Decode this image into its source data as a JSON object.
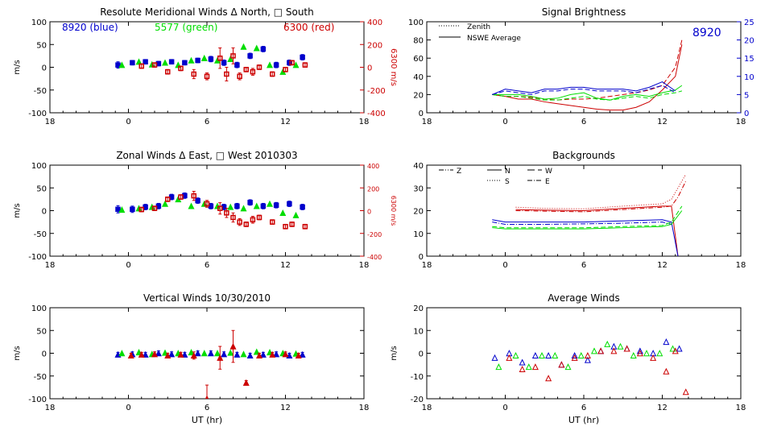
{
  "colors": {
    "blue": "#0000cc",
    "green": "#00dd00",
    "red": "#cc0000",
    "axis": "#000000"
  },
  "x_axis": {
    "ticks": [
      "18",
      "0",
      "6",
      "12",
      "18"
    ],
    "xlabel": "UT (hr)"
  },
  "chart_data": [
    {
      "id": "meridional",
      "type": "scatter",
      "title": "Resolute Meridional Winds Δ North, □ South",
      "ylabel": "m/s",
      "y2label": "6300 m/s",
      "ylim": [
        -100,
        100
      ],
      "yticks": [
        "100",
        "50",
        "0",
        "-50",
        "-100"
      ],
      "y2lim": [
        -400,
        400
      ],
      "y2ticks": [
        "400",
        "200",
        "0",
        "-200",
        "-400"
      ],
      "annotations": [
        {
          "text": "8920 (blue)",
          "color": "blue"
        },
        {
          "text": "5577 (green)",
          "color": "green"
        },
        {
          "text": "6300 (red)",
          "color": "red"
        }
      ],
      "series": [
        {
          "color": "blue",
          "marker": "square",
          "errorbars": true,
          "x": [
            -0.8,
            0.3,
            1.3,
            2.3,
            3.3,
            4.3,
            5.3,
            6.3,
            7.3,
            8.3,
            9.3,
            10.3,
            11.3,
            12.3,
            13.3
          ],
          "y": [
            5,
            10,
            12,
            8,
            12,
            10,
            15,
            18,
            10,
            5,
            25,
            40,
            5,
            10,
            22
          ],
          "err": [
            7,
            5,
            5,
            5,
            5,
            5,
            5,
            6,
            6,
            6,
            6,
            6,
            6,
            6,
            6
          ]
        },
        {
          "color": "green",
          "marker": "triangle",
          "errorbars": false,
          "x": [
            -0.5,
            0.8,
            1.8,
            2.8,
            3.8,
            4.8,
            5.8,
            6.8,
            7.8,
            8.8,
            9.8,
            10.8,
            11.8,
            12.8
          ],
          "y": [
            5,
            12,
            6,
            10,
            5,
            15,
            20,
            15,
            18,
            45,
            42,
            5,
            -10,
            5
          ],
          "err": []
        },
        {
          "color": "red",
          "marker": "square",
          "errorbars": true,
          "axis": "y2",
          "x": [
            1.0,
            2.0,
            3.0,
            4.0,
            5.0,
            6.0,
            7.0,
            7.5,
            8.0,
            8.5,
            9.0,
            9.5,
            10.0,
            11.0,
            12.0,
            12.5,
            13.5
          ],
          "y": [
            10,
            20,
            -40,
            -10,
            -60,
            -80,
            80,
            -60,
            100,
            -80,
            -20,
            -40,
            0,
            -60,
            -20,
            40,
            20
          ],
          "err": [
            20,
            20,
            20,
            20,
            40,
            30,
            90,
            60,
            70,
            30,
            20,
            30,
            20,
            20,
            20,
            20,
            20
          ]
        }
      ]
    },
    {
      "id": "brightness",
      "type": "line",
      "title": "Signal Brightness",
      "ylim": [
        0,
        100
      ],
      "yticks": [
        "100",
        "80",
        "60",
        "40",
        "20",
        "0"
      ],
      "y2lim": [
        0,
        25
      ],
      "y2ticks": [
        "25",
        "20",
        "15",
        "10",
        "5",
        "0"
      ],
      "annotation": "8920",
      "legend": [
        {
          "label": "Zenith",
          "style": "dotted"
        },
        {
          "label": "NSWE Average",
          "style": "solid"
        }
      ],
      "series": [
        {
          "color": "red",
          "style": "solid",
          "x": [
            -1,
            0,
            1,
            2,
            3,
            4,
            5,
            6,
            7,
            8,
            9,
            10,
            11,
            12,
            13,
            13.5
          ],
          "y": [
            20,
            18,
            15,
            15,
            12,
            10,
            8,
            6,
            4,
            3,
            3,
            6,
            12,
            25,
            40,
            75
          ]
        },
        {
          "color": "red",
          "style": "dashed",
          "x": [
            -1,
            0,
            1,
            2,
            3,
            4,
            5,
            6,
            7,
            8,
            9,
            10,
            11,
            12,
            13,
            13.5
          ],
          "y": [
            20,
            18,
            18,
            17,
            15,
            14,
            15,
            15,
            16,
            18,
            20,
            22,
            25,
            30,
            50,
            80
          ]
        },
        {
          "color": "green",
          "style": "solid",
          "x": [
            -1,
            0,
            1,
            2,
            3,
            4,
            5,
            6,
            7,
            8,
            9,
            10,
            11,
            12,
            13,
            13.5
          ],
          "y": [
            20,
            20,
            20,
            18,
            15,
            16,
            20,
            22,
            16,
            14,
            18,
            20,
            18,
            22,
            25,
            30
          ]
        },
        {
          "color": "green",
          "style": "dashed",
          "x": [
            -1,
            0,
            1,
            2,
            3,
            4,
            5,
            6,
            7,
            8,
            9,
            10,
            11,
            12,
            13,
            13.5
          ],
          "y": [
            20,
            18,
            18,
            16,
            14,
            14,
            16,
            18,
            15,
            14,
            16,
            18,
            16,
            20,
            22,
            24
          ]
        },
        {
          "color": "blue",
          "style": "solid",
          "axis": "y2",
          "x": [
            -1,
            0,
            1,
            2,
            3,
            4,
            5,
            6,
            7,
            8,
            9,
            10,
            11,
            12,
            13
          ],
          "y": [
            5,
            6.5,
            6,
            5.5,
            6.5,
            6.5,
            7,
            7,
            6.5,
            6.5,
            6.5,
            6,
            7,
            8.5,
            6
          ]
        },
        {
          "color": "blue",
          "style": "dashed",
          "axis": "y2",
          "x": [
            -1,
            0,
            1,
            2,
            3,
            4,
            5,
            6,
            7,
            8,
            9,
            10,
            11,
            12,
            13
          ],
          "y": [
            5,
            6,
            5.5,
            5,
            6,
            6,
            6.5,
            6.5,
            6,
            6,
            6,
            5.5,
            6.5,
            7.5,
            5.5
          ]
        }
      ]
    },
    {
      "id": "zonal",
      "type": "scatter",
      "title": "Zonal Winds Δ East, □ West 2010303",
      "ylabel": "m/s",
      "y2label": "6300 m/s",
      "ylim": [
        -100,
        100
      ],
      "yticks": [
        "100",
        "50",
        "0",
        "-50",
        "-100"
      ],
      "y2lim": [
        -400,
        400
      ],
      "y2ticks": [
        "400",
        "200",
        "0",
        "-200",
        "-400"
      ],
      "series": [
        {
          "color": "blue",
          "marker": "square",
          "errorbars": true,
          "x": [
            -0.8,
            0.3,
            1.3,
            2.3,
            3.3,
            4.3,
            5.3,
            6.3,
            7.3,
            8.3,
            9.3,
            10.3,
            11.3,
            12.3,
            13.3
          ],
          "y": [
            3,
            3,
            8,
            10,
            30,
            33,
            22,
            10,
            8,
            10,
            18,
            10,
            12,
            15,
            8
          ],
          "err": [
            8,
            7,
            6,
            6,
            6,
            6,
            6,
            6,
            6,
            6,
            6,
            6,
            6,
            6,
            6
          ]
        },
        {
          "color": "green",
          "marker": "triangle",
          "errorbars": false,
          "x": [
            -0.5,
            0.8,
            1.8,
            2.8,
            3.8,
            4.8,
            5.8,
            6.8,
            7.8,
            8.8,
            9.8,
            10.8,
            11.8,
            12.8
          ],
          "y": [
            2,
            5,
            8,
            15,
            25,
            10,
            15,
            10,
            8,
            5,
            10,
            15,
            -5,
            -10
          ],
          "err": []
        },
        {
          "color": "red",
          "marker": "square",
          "errorbars": true,
          "axis": "y2",
          "x": [
            1.0,
            2.0,
            3.0,
            4.0,
            5.0,
            6.0,
            7.0,
            7.5,
            8.0,
            8.5,
            9.0,
            9.5,
            10.0,
            11.0,
            12.0,
            12.5,
            13.5
          ],
          "y": [
            10,
            20,
            100,
            120,
            130,
            60,
            20,
            -20,
            -60,
            -100,
            -120,
            -80,
            -60,
            -100,
            -140,
            -120,
            -140
          ],
          "err": [
            20,
            20,
            20,
            20,
            40,
            30,
            50,
            40,
            40,
            30,
            20,
            30,
            20,
            20,
            20,
            20,
            20
          ]
        }
      ]
    },
    {
      "id": "backgrounds",
      "type": "line",
      "title": "Backgrounds",
      "ylim": [
        0,
        40
      ],
      "yticks": [
        "40",
        "30",
        "20",
        "10",
        "0"
      ],
      "legend": [
        {
          "label": "Z",
          "style": "dashdotdot"
        },
        {
          "label": "N",
          "style": "solid"
        },
        {
          "label": "W",
          "style": "longdash"
        },
        {
          "label": "S",
          "style": "dotted"
        },
        {
          "label": "E",
          "style": "dashdot"
        }
      ],
      "series": [
        {
          "color": "red",
          "style": "solid",
          "x": [
            0.8,
            3,
            6,
            9,
            12,
            12.7,
            13.2
          ],
          "y": [
            20.5,
            20.2,
            20,
            21,
            22,
            22,
            0
          ]
        },
        {
          "color": "red",
          "style": "dotted",
          "x": [
            0.8,
            3,
            6,
            9,
            12,
            12.7,
            13.2,
            13.8
          ],
          "y": [
            21.5,
            21,
            20.8,
            22,
            23,
            25,
            30,
            36
          ]
        },
        {
          "color": "red",
          "style": "dashdot",
          "x": [
            0.8,
            3,
            6,
            9,
            12,
            12.7,
            13.2,
            13.8
          ],
          "y": [
            20,
            19.8,
            19.5,
            20.5,
            21.5,
            22,
            26,
            33
          ]
        },
        {
          "color": "blue",
          "style": "solid",
          "x": [
            -1,
            0,
            3,
            6,
            9,
            12,
            12.7,
            13.2
          ],
          "y": [
            16,
            15,
            15,
            15,
            15.5,
            16,
            15,
            0
          ]
        },
        {
          "color": "blue",
          "style": "dashdot",
          "x": [
            -1,
            0,
            3,
            6,
            9,
            12,
            12.7
          ],
          "y": [
            15,
            14,
            14,
            14.2,
            14.5,
            15,
            14
          ]
        },
        {
          "color": "green",
          "style": "solid",
          "x": [
            -1,
            0,
            3,
            6,
            9,
            12,
            12.7,
            13.5
          ],
          "y": [
            12.5,
            12,
            12,
            12,
            12.5,
            13,
            14,
            20
          ]
        },
        {
          "color": "green",
          "style": "dashed",
          "x": [
            -1,
            0,
            3,
            6,
            9,
            12,
            12.7,
            13.5
          ],
          "y": [
            13,
            12.5,
            12.5,
            12.5,
            13,
            13.5,
            15,
            22
          ]
        }
      ]
    },
    {
      "id": "vertical",
      "type": "scatter",
      "title": "Vertical Winds 10/30/2010",
      "ylabel": "m/s",
      "xlabel": "UT (hr)",
      "ylim": [
        -100,
        100
      ],
      "yticks": [
        "100",
        "50",
        "0",
        "-50",
        "-100"
      ],
      "series": [
        {
          "color": "blue",
          "marker": "triangle",
          "errorbars": true,
          "x": [
            -0.8,
            0.3,
            1.3,
            2.3,
            3.3,
            4.3,
            5.3,
            6.3,
            7.3,
            8.3,
            9.3,
            10.3,
            11.3,
            12.3,
            13.3
          ],
          "y": [
            -3,
            -2,
            -3,
            0,
            -2,
            -3,
            0,
            0,
            -2,
            -3,
            -5,
            -3,
            -2,
            -5,
            -3
          ],
          "err": [
            5,
            5,
            5,
            5,
            5,
            5,
            5,
            5,
            5,
            5,
            5,
            5,
            5,
            5,
            5
          ]
        },
        {
          "color": "green",
          "marker": "triangle",
          "errorbars": false,
          "x": [
            -0.5,
            0.8,
            1.8,
            2.8,
            3.8,
            4.8,
            5.8,
            6.8,
            7.8,
            8.8,
            9.8,
            10.8,
            11.8,
            12.8
          ],
          "y": [
            0,
            2,
            -2,
            1,
            0,
            2,
            0,
            0,
            1,
            -2,
            3,
            2,
            0,
            -1
          ],
          "err": []
        },
        {
          "color": "red",
          "marker": "triangle",
          "errorbars": true,
          "x": [
            0.2,
            1.0,
            2.0,
            3.0,
            4.0,
            5.0,
            6.0,
            7.0,
            8.0,
            9.0,
            10.0,
            11.0,
            12.0,
            13.0
          ],
          "y": [
            -5,
            -3,
            -2,
            -5,
            -3,
            -5,
            -100,
            -10,
            15,
            -65,
            -5,
            -3,
            -2,
            -5
          ],
          "err": [
            5,
            5,
            5,
            5,
            5,
            8,
            30,
            25,
            35,
            5,
            5,
            5,
            5,
            5
          ]
        }
      ]
    },
    {
      "id": "average",
      "type": "scatter",
      "title": "Average Winds",
      "ylabel": "m/s",
      "xlabel": "UT (hr)",
      "ylim": [
        -20,
        20
      ],
      "yticks": [
        "20",
        "10",
        "0",
        "-10",
        "-20"
      ],
      "series": [
        {
          "color": "blue",
          "marker": "triangle-open",
          "x": [
            -0.8,
            0.3,
            1.3,
            2.3,
            3.3,
            4.3,
            5.3,
            6.3,
            7.3,
            8.3,
            9.3,
            10.3,
            11.3,
            12.3,
            13.3
          ],
          "y": [
            -2,
            0,
            -4,
            -1,
            -1,
            -5,
            -1,
            -3,
            1,
            3,
            2,
            1,
            0,
            5,
            2
          ],
          "err": []
        },
        {
          "color": "green",
          "marker": "triangle-open",
          "x": [
            -0.5,
            0.8,
            1.8,
            2.8,
            3.8,
            4.8,
            5.8,
            6.8,
            7.8,
            8.8,
            9.8,
            10.8,
            11.8,
            12.8
          ],
          "y": [
            -6,
            -1,
            -6,
            -1,
            -1,
            -6,
            -1,
            1,
            4,
            3,
            -1,
            0,
            0,
            2
          ],
          "err": []
        },
        {
          "color": "red",
          "marker": "triangle-open",
          "x": [
            0.3,
            1.3,
            2.3,
            3.3,
            4.3,
            5.3,
            6.3,
            7.3,
            8.3,
            9.3,
            10.3,
            11.3,
            12.3,
            13.0,
            13.8
          ],
          "y": [
            -2,
            -7,
            -6,
            -11,
            -5,
            -2,
            -1,
            1,
            1,
            2,
            0,
            -2,
            -8,
            1,
            -17
          ],
          "err": []
        }
      ]
    }
  ]
}
